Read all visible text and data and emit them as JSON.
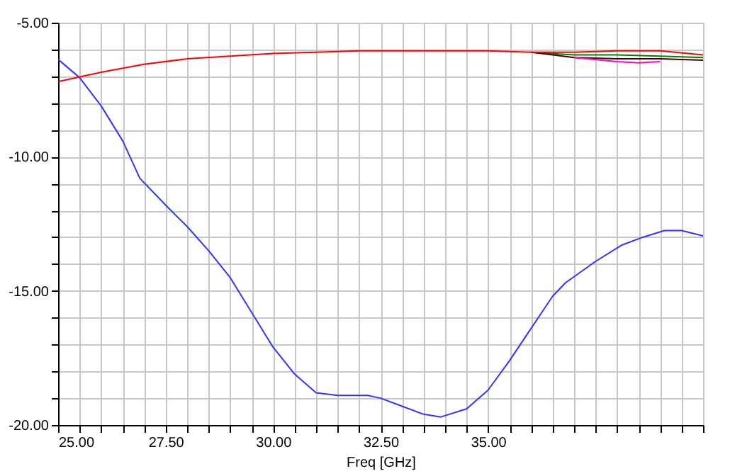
{
  "chart_data": {
    "type": "line",
    "xlabel": "Freq [GHz]",
    "x": [
      25,
      26,
      27,
      28,
      29,
      30,
      31,
      32,
      33,
      34,
      35,
      36,
      37,
      38,
      39,
      40
    ],
    "series": [
      {
        "color": "#3333ff",
        "x": [
          25,
          25.5,
          26,
          26.5,
          26.9,
          27.5,
          28,
          28.5,
          29,
          29.5,
          30,
          30.5,
          31,
          31.5,
          32.2,
          32.5,
          33,
          33.5,
          33.9,
          34.5,
          35,
          35.5,
          36,
          36.5,
          36.8,
          37.5,
          38.1,
          38.6,
          39.1,
          39.5,
          40
        ],
        "values": [
          -6.37,
          -7.05,
          -8.1,
          -9.4,
          -10.8,
          -11.8,
          -12.6,
          -13.5,
          -14.5,
          -15.8,
          -17.1,
          -18.1,
          -18.8,
          -18.9,
          -18.9,
          -19.0,
          -19.3,
          -19.6,
          -19.7,
          -19.4,
          -18.7,
          -17.6,
          -16.4,
          -15.2,
          -14.7,
          -13.9,
          -13.3,
          -13.0,
          -12.75,
          -12.75,
          -12.95
        ]
      },
      {
        "color": "#008000",
        "x": [
          36,
          37,
          38,
          39,
          40
        ],
        "values": [
          -6.1,
          -6.2,
          -6.2,
          -6.25,
          -6.3
        ]
      },
      {
        "color": "#400000",
        "x": [
          36,
          37,
          38,
          39,
          40
        ],
        "values": [
          -6.1,
          -6.3,
          -6.35,
          -6.35,
          -6.4
        ]
      },
      {
        "color": "#ff00cc",
        "x": [
          37,
          38,
          38.5,
          39
        ],
        "values": [
          -6.3,
          -6.45,
          -6.5,
          -6.45
        ]
      },
      {
        "color": "#ff0000",
        "values": [
          -7.2,
          -6.85,
          -6.55,
          -6.35,
          -6.25,
          -6.15,
          -6.1,
          -6.05,
          -6.05,
          -6.05,
          -6.05,
          -6.1,
          -6.1,
          -6.05,
          -6.05,
          -6.2
        ]
      }
    ],
    "xlim": [
      25,
      40
    ],
    "xticks": [
      {
        "value": 25,
        "label": "25.00"
      },
      {
        "value": 25.5,
        "label": null
      },
      {
        "value": 26,
        "label": null
      },
      {
        "value": 26.5,
        "label": null
      },
      {
        "value": 27,
        "label": null
      },
      {
        "value": 27.5,
        "label": "27.50"
      },
      {
        "value": 28,
        "label": null
      },
      {
        "value": 28.5,
        "label": null
      },
      {
        "value": 29,
        "label": null
      },
      {
        "value": 29.5,
        "label": null
      },
      {
        "value": 30,
        "label": "30.00"
      },
      {
        "value": 30.5,
        "label": null
      },
      {
        "value": 31,
        "label": null
      },
      {
        "value": 31.5,
        "label": null
      },
      {
        "value": 32,
        "label": null
      },
      {
        "value": 32.5,
        "label": "32.50"
      },
      {
        "value": 33,
        "label": null
      },
      {
        "value": 33.5,
        "label": null
      },
      {
        "value": 34,
        "label": null
      },
      {
        "value": 34.5,
        "label": null
      },
      {
        "value": 35,
        "label": "35.00"
      },
      {
        "value": 35.5,
        "label": null
      },
      {
        "value": 36,
        "label": null
      },
      {
        "value": 36.5,
        "label": null
      },
      {
        "value": 37,
        "label": null
      },
      {
        "value": 37.5,
        "label": null
      },
      {
        "value": 38,
        "label": null
      },
      {
        "value": 38.5,
        "label": null
      },
      {
        "value": 39,
        "label": null
      },
      {
        "value": 39.5,
        "label": null
      },
      {
        "value": 40,
        "label": null
      }
    ],
    "ylim": [
      -20,
      -5
    ],
    "yticks": [
      {
        "value": -20,
        "label": "-20.00"
      },
      {
        "value": -19,
        "label": null
      },
      {
        "value": -18,
        "label": null
      },
      {
        "value": -17,
        "label": null
      },
      {
        "value": -16,
        "label": null
      },
      {
        "value": -15,
        "label": "-15.00"
      },
      {
        "value": -14,
        "label": null
      },
      {
        "value": -13,
        "label": null
      },
      {
        "value": -12,
        "label": null
      },
      {
        "value": -11,
        "label": null
      },
      {
        "value": -10,
        "label": "-10.00"
      },
      {
        "value": -9,
        "label": null
      },
      {
        "value": -8,
        "label": null
      },
      {
        "value": -7,
        "label": null
      },
      {
        "value": -6,
        "label": null
      },
      {
        "value": -5,
        "label": "-5.00"
      }
    ],
    "grid": true,
    "marker": "none",
    "line_style": "solid"
  }
}
